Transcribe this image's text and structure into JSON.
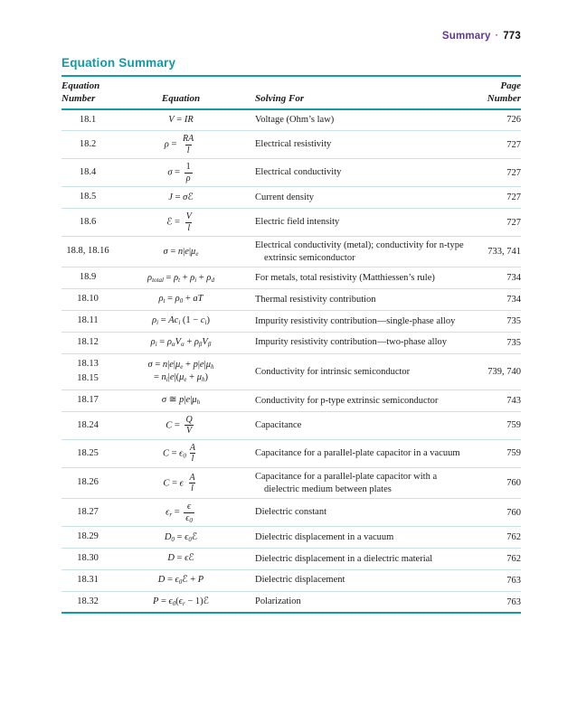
{
  "running_head": {
    "section": "Summary",
    "separator": "·",
    "page": "773"
  },
  "title": "Equation Summary",
  "colors": {
    "teal_accent": "#0d9ca8",
    "purple_section": "#5d3997",
    "red_dot": "#c62d1f",
    "row_separator": "#c9e2ea",
    "text": "#1c1c1c"
  },
  "table": {
    "header": {
      "equation_number_line1": "Equation",
      "equation_number_line2": "Number",
      "equation": "Equation",
      "solving_for": "Solving For",
      "page_number_line1": "Page",
      "page_number_line2": "Number"
    },
    "rows": [
      {
        "number": [
          "18.1"
        ],
        "equation": [
          [
            {
              "v": "V"
            },
            {
              "r": " = "
            },
            {
              "v": "IR"
            }
          ]
        ],
        "solving_for": "Voltage (Ohm’s law)",
        "page": "726"
      },
      {
        "number": [
          "18.2"
        ],
        "equation": [
          [
            {
              "v": "ρ"
            },
            {
              "r": " = "
            },
            {
              "f": {
                "n": [
                  {
                    "v": "RA"
                  }
                ],
                "d": [
                  {
                    "v": "l"
                  }
                ]
              }
            }
          ]
        ],
        "solving_for": "Electrical resistivity",
        "page": "727"
      },
      {
        "number": [
          "18.4"
        ],
        "equation": [
          [
            {
              "v": "σ"
            },
            {
              "r": " = "
            },
            {
              "f": {
                "n": [
                  {
                    "r": "1"
                  }
                ],
                "d": [
                  {
                    "v": "ρ"
                  }
                ]
              }
            }
          ]
        ],
        "solving_for": "Electrical conductivity",
        "page": "727"
      },
      {
        "number": [
          "18.5"
        ],
        "equation": [
          [
            {
              "v": "J"
            },
            {
              "r": " = "
            },
            {
              "v": "σℰ"
            }
          ]
        ],
        "solving_for": "Current density",
        "page": "727"
      },
      {
        "number": [
          "18.6"
        ],
        "equation": [
          [
            {
              "v": "ℰ"
            },
            {
              "r": " = "
            },
            {
              "f": {
                "n": [
                  {
                    "v": "V"
                  }
                ],
                "d": [
                  {
                    "v": "l"
                  }
                ]
              }
            }
          ]
        ],
        "solving_for": "Electric field intensity",
        "page": "727"
      },
      {
        "number": [
          "18.8, 18.16"
        ],
        "equation": [
          [
            {
              "v": "σ"
            },
            {
              "r": " = "
            },
            {
              "v": "n"
            },
            {
              "r": "|"
            },
            {
              "v": "e"
            },
            {
              "r": "|"
            },
            {
              "v": "μ"
            },
            {
              "s": "e"
            }
          ]
        ],
        "solving_for": "Electrical conductivity (metal); conductivity for n-type extrinsic semiconductor",
        "page": "733, 741"
      },
      {
        "number": [
          "18.9"
        ],
        "equation": [
          [
            {
              "v": "ρ"
            },
            {
              "s": "total"
            },
            {
              "r": " = "
            },
            {
              "v": "ρ"
            },
            {
              "s": "t"
            },
            {
              "r": " + "
            },
            {
              "v": "ρ"
            },
            {
              "s": "i"
            },
            {
              "r": " + "
            },
            {
              "v": "ρ"
            },
            {
              "s": "d"
            }
          ]
        ],
        "solving_for": "For metals, total resistivity (Matthiessen’s rule)",
        "page": "734"
      },
      {
        "number": [
          "18.10"
        ],
        "equation": [
          [
            {
              "v": "ρ"
            },
            {
              "s": "t"
            },
            {
              "r": " = "
            },
            {
              "v": "ρ"
            },
            {
              "s": "0"
            },
            {
              "r": " + "
            },
            {
              "v": "aT"
            }
          ]
        ],
        "solving_for": "Thermal resistivity contribution",
        "page": "734"
      },
      {
        "number": [
          "18.11"
        ],
        "equation": [
          [
            {
              "v": "ρ"
            },
            {
              "s": "i"
            },
            {
              "r": " = "
            },
            {
              "v": "Ac"
            },
            {
              "s": "i"
            },
            {
              "r": " (1 − "
            },
            {
              "v": "c"
            },
            {
              "s": "i"
            },
            {
              "r": ")"
            }
          ]
        ],
        "solving_for": "Impurity resistivity contribution—single-phase alloy",
        "page": "735"
      },
      {
        "number": [
          "18.12"
        ],
        "equation": [
          [
            {
              "v": "ρ"
            },
            {
              "s": "i"
            },
            {
              "r": " = "
            },
            {
              "v": "ρ"
            },
            {
              "s": "α"
            },
            {
              "v": "V"
            },
            {
              "s": "α"
            },
            {
              "r": " + "
            },
            {
              "v": "ρ"
            },
            {
              "s": "β"
            },
            {
              "v": "V"
            },
            {
              "s": "β"
            }
          ]
        ],
        "solving_for": "Impurity resistivity contribution—two-phase alloy",
        "page": "735"
      },
      {
        "number": [
          "18.13",
          "18.15"
        ],
        "equation": [
          [
            {
              "v": "σ"
            },
            {
              "r": " = "
            },
            {
              "v": "n"
            },
            {
              "r": "|"
            },
            {
              "v": "e"
            },
            {
              "r": "|"
            },
            {
              "v": "μ"
            },
            {
              "s": "e"
            },
            {
              "r": " + "
            },
            {
              "v": "p"
            },
            {
              "r": "|"
            },
            {
              "v": "e"
            },
            {
              "r": "|"
            },
            {
              "v": "μ"
            },
            {
              "s": "h"
            }
          ],
          [
            {
              "r": "= "
            },
            {
              "v": "n"
            },
            {
              "s": "i"
            },
            {
              "r": "|"
            },
            {
              "v": "e"
            },
            {
              "r": "|("
            },
            {
              "v": "μ"
            },
            {
              "s": "e"
            },
            {
              "r": " + "
            },
            {
              "v": "μ"
            },
            {
              "s": "h"
            },
            {
              "r": ")"
            }
          ]
        ],
        "solving_for": "Conductivity for intrinsic semiconductor",
        "page": "739, 740"
      },
      {
        "number": [
          "18.17"
        ],
        "equation": [
          [
            {
              "v": "σ"
            },
            {
              "r": " ≅ "
            },
            {
              "v": "p"
            },
            {
              "r": "|"
            },
            {
              "v": "e"
            },
            {
              "r": "|"
            },
            {
              "v": "μ"
            },
            {
              "s": "h"
            }
          ]
        ],
        "solving_for": "Conductivity for p-type extrinsic semiconductor",
        "page": "743"
      },
      {
        "number": [
          "18.24"
        ],
        "equation": [
          [
            {
              "v": "C"
            },
            {
              "r": " = "
            },
            {
              "f": {
                "n": [
                  {
                    "v": "Q"
                  }
                ],
                "d": [
                  {
                    "v": "V"
                  }
                ]
              }
            }
          ]
        ],
        "solving_for": "Capacitance",
        "page": "759"
      },
      {
        "number": [
          "18.25"
        ],
        "equation": [
          [
            {
              "v": "C"
            },
            {
              "r": " = "
            },
            {
              "v": "ϵ"
            },
            {
              "s": "0"
            },
            {
              "f": {
                "n": [
                  {
                    "v": "A"
                  }
                ],
                "d": [
                  {
                    "v": "l"
                  }
                ]
              }
            }
          ]
        ],
        "solving_for": "Capacitance for a parallel-plate capacitor in a vacuum",
        "page": "759"
      },
      {
        "number": [
          "18.26"
        ],
        "equation": [
          [
            {
              "v": "C"
            },
            {
              "r": " = "
            },
            {
              "v": "ϵ"
            },
            {
              "r": " "
            },
            {
              "f": {
                "n": [
                  {
                    "v": "A"
                  }
                ],
                "d": [
                  {
                    "v": "l"
                  }
                ]
              }
            }
          ]
        ],
        "solving_for": "Capacitance for a parallel-plate capacitor with a dielectric medium between plates",
        "page": "760"
      },
      {
        "number": [
          "18.27"
        ],
        "equation": [
          [
            {
              "v": "ϵ"
            },
            {
              "s": "r"
            },
            {
              "r": " = "
            },
            {
              "f": {
                "n": [
                  {
                    "v": "ϵ"
                  }
                ],
                "d": [
                  {
                    "v": "ϵ"
                  },
                  {
                    "s": "0"
                  }
                ]
              }
            }
          ]
        ],
        "solving_for": "Dielectric constant",
        "page": "760"
      },
      {
        "number": [
          "18.29"
        ],
        "equation": [
          [
            {
              "v": "D"
            },
            {
              "s": "0"
            },
            {
              "r": " = "
            },
            {
              "v": "ϵ"
            },
            {
              "s": "0"
            },
            {
              "v": "ℰ"
            }
          ]
        ],
        "solving_for": "Dielectric displacement in a vacuum",
        "page": "762"
      },
      {
        "number": [
          "18.30"
        ],
        "equation": [
          [
            {
              "v": "D"
            },
            {
              "r": " = "
            },
            {
              "v": "ϵℰ"
            }
          ]
        ],
        "solving_for": "Dielectric displacement in a dielectric material",
        "page": "762"
      },
      {
        "number": [
          "18.31"
        ],
        "equation": [
          [
            {
              "v": "D"
            },
            {
              "r": " = "
            },
            {
              "v": "ϵ"
            },
            {
              "s": "0"
            },
            {
              "v": "ℰ"
            },
            {
              "r": " + "
            },
            {
              "v": "P"
            }
          ]
        ],
        "solving_for": "Dielectric displacement",
        "page": "763"
      },
      {
        "number": [
          "18.32"
        ],
        "equation": [
          [
            {
              "v": "P"
            },
            {
              "r": " = "
            },
            {
              "v": "ϵ"
            },
            {
              "s": "0"
            },
            {
              "r": "("
            },
            {
              "v": "ϵ"
            },
            {
              "s": "r"
            },
            {
              "r": " − 1)"
            },
            {
              "v": "ℰ"
            }
          ]
        ],
        "solving_for": "Polarization",
        "page": "763"
      }
    ]
  }
}
